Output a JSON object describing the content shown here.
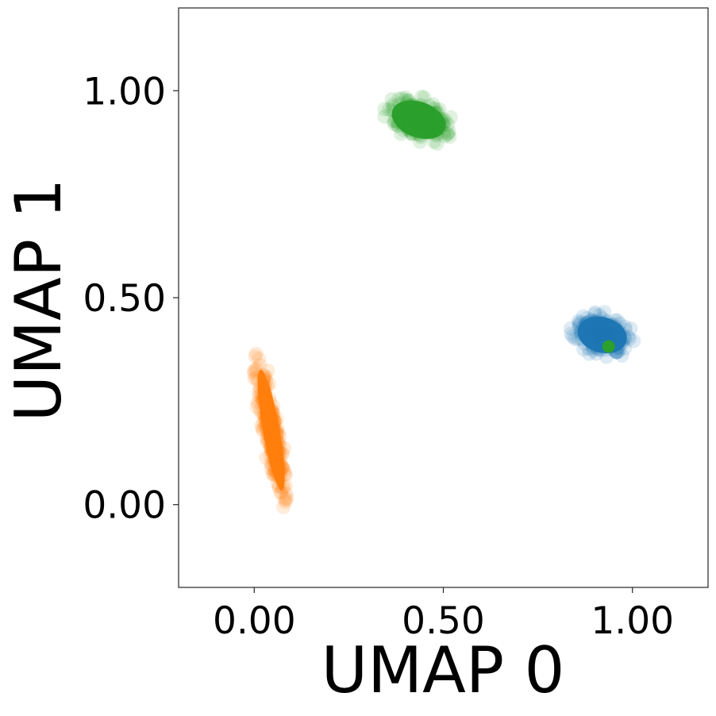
{
  "chart_data": {
    "type": "scatter",
    "title": "",
    "xlabel": "UMAP 0",
    "ylabel": "UMAP 1",
    "xlim": [
      -0.2,
      1.2
    ],
    "ylim": [
      -0.2,
      1.2
    ],
    "xticks": [
      "0.00",
      "0.50",
      "1.00"
    ],
    "yticks": [
      "0.00",
      "0.50",
      "1.00"
    ],
    "grid": false,
    "legend": "none",
    "clusters": [
      {
        "color": "#1f77b4",
        "shape": "ellipse",
        "center": [
          0.92,
          0.41
        ],
        "spread": [
          0.085,
          0.055
        ],
        "angle_deg": -15,
        "n_points": 260
      },
      {
        "color": "#ff7f0e",
        "shape": "ellipse",
        "center": [
          0.045,
          0.18
        ],
        "spread": [
          0.028,
          0.19
        ],
        "angle_deg": 10,
        "n_points": 260
      },
      {
        "color": "#2ca02c",
        "shape": "ellipse",
        "center": [
          0.435,
          0.93
        ],
        "spread": [
          0.095,
          0.055
        ],
        "angle_deg": -20,
        "n_points": 260
      }
    ],
    "highlight_points": [
      {
        "x": 0.937,
        "y": 0.382,
        "color": "#2ca02c"
      }
    ]
  }
}
